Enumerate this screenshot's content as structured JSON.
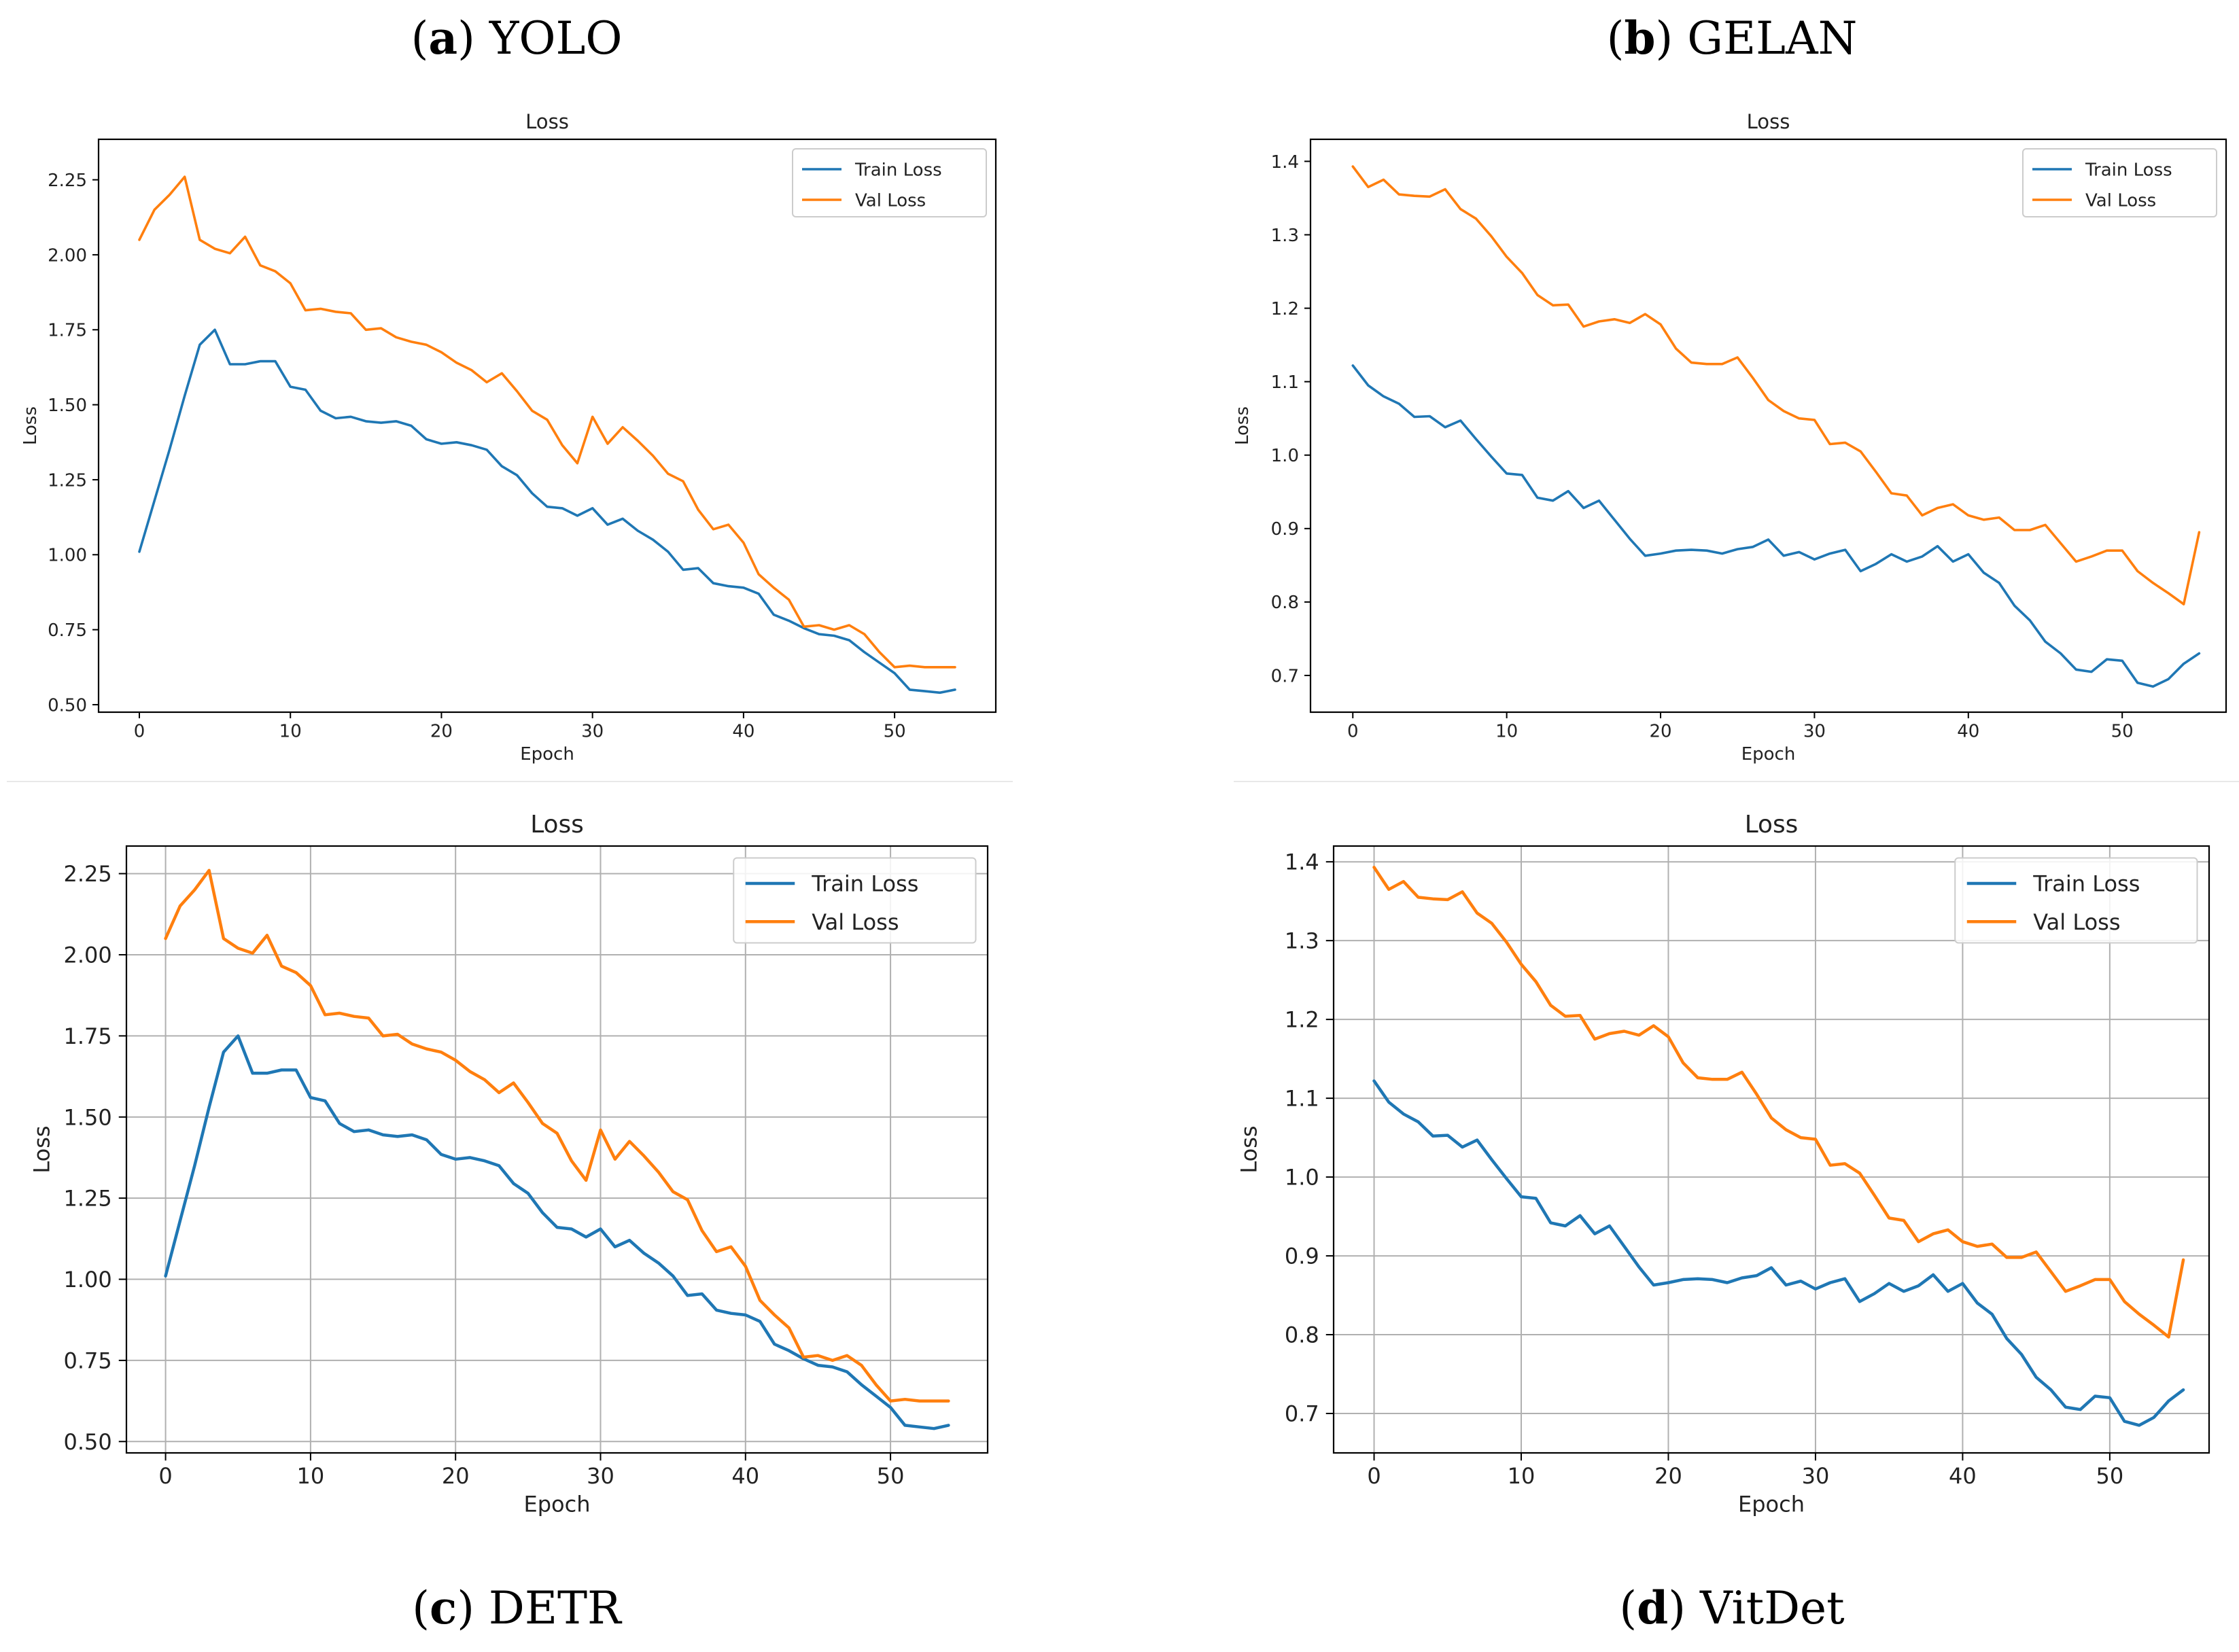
{
  "captions": [
    {
      "letter": "a",
      "name": "YOLO"
    },
    {
      "letter": "b",
      "name": "GELAN"
    },
    {
      "letter": "c",
      "name": "DETR"
    },
    {
      "letter": "d",
      "name": "VitDet"
    }
  ],
  "colors": {
    "train": "#1f77b4",
    "val": "#ff7f0e",
    "grid": "#b0b0b0",
    "axis": "#000000"
  },
  "chart_data": [
    {
      "type": "line",
      "panel": "a",
      "title": "Loss",
      "xlabel": "Epoch",
      "ylabel": "Loss",
      "xlim": [
        -2.7,
        56.7
      ],
      "ylim": [
        0.475,
        2.385
      ],
      "xticks": [
        0,
        10,
        20,
        30,
        40,
        50
      ],
      "yticks": [
        0.5,
        0.75,
        1.0,
        1.25,
        1.5,
        1.75,
        2.0,
        2.25
      ],
      "ytick_labels": [
        "0.50",
        "0.75",
        "1.00",
        "1.25",
        "1.50",
        "1.75",
        "2.00",
        "2.25"
      ],
      "grid": false,
      "legend_position": "top-right",
      "series": [
        {
          "name": "Train Loss",
          "color": "#1f77b4",
          "x_start": 0,
          "values": [
            1.01,
            1.18,
            1.35,
            1.53,
            1.7,
            1.75,
            1.635,
            1.635,
            1.645,
            1.645,
            1.56,
            1.55,
            1.48,
            1.455,
            1.46,
            1.445,
            1.44,
            1.445,
            1.43,
            1.385,
            1.37,
            1.375,
            1.365,
            1.35,
            1.295,
            1.265,
            1.205,
            1.16,
            1.155,
            1.13,
            1.155,
            1.1,
            1.12,
            1.08,
            1.05,
            1.01,
            0.95,
            0.955,
            0.905,
            0.895,
            0.89,
            0.87,
            0.8,
            0.78,
            0.755,
            0.735,
            0.73,
            0.715,
            0.675,
            0.64,
            0.605,
            0.55,
            0.545,
            0.54,
            0.55
          ]
        },
        {
          "name": "Val Loss",
          "color": "#ff7f0e",
          "x_start": 0,
          "values": [
            2.05,
            2.15,
            2.2,
            2.26,
            2.05,
            2.02,
            2.005,
            2.06,
            1.965,
            1.945,
            1.905,
            1.815,
            1.82,
            1.81,
            1.805,
            1.75,
            1.755,
            1.725,
            1.71,
            1.7,
            1.675,
            1.64,
            1.615,
            1.575,
            1.605,
            1.545,
            1.48,
            1.45,
            1.365,
            1.305,
            1.46,
            1.37,
            1.425,
            1.38,
            1.33,
            1.27,
            1.245,
            1.15,
            1.085,
            1.1,
            1.04,
            0.935,
            0.89,
            0.85,
            0.76,
            0.765,
            0.75,
            0.765,
            0.735,
            0.675,
            0.625,
            0.63,
            0.625,
            0.625,
            0.625
          ]
        }
      ]
    },
    {
      "type": "line",
      "panel": "b",
      "title": "Loss",
      "xlabel": "Epoch",
      "ylabel": "Loss",
      "xlim": [
        -2.75,
        56.75
      ],
      "ylim": [
        0.65,
        1.43
      ],
      "xticks": [
        0,
        10,
        20,
        30,
        40,
        50
      ],
      "yticks": [
        0.7,
        0.8,
        0.9,
        1.0,
        1.1,
        1.2,
        1.3,
        1.4
      ],
      "ytick_labels": [
        "0.7",
        "0.8",
        "0.9",
        "1.0",
        "1.1",
        "1.2",
        "1.3",
        "1.4"
      ],
      "grid": false,
      "legend_position": "top-right",
      "series": [
        {
          "name": "Train Loss",
          "color": "#1f77b4",
          "x_start": 0,
          "values": [
            1.122,
            1.095,
            1.08,
            1.07,
            1.052,
            1.053,
            1.038,
            1.047,
            1.022,
            0.998,
            0.975,
            0.973,
            0.942,
            0.938,
            0.951,
            0.928,
            0.938,
            0.912,
            0.886,
            0.863,
            0.866,
            0.87,
            0.871,
            0.87,
            0.866,
            0.872,
            0.875,
            0.885,
            0.863,
            0.868,
            0.858,
            0.866,
            0.871,
            0.842,
            0.852,
            0.865,
            0.855,
            0.862,
            0.876,
            0.855,
            0.865,
            0.84,
            0.826,
            0.795,
            0.775,
            0.746,
            0.73,
            0.708,
            0.705,
            0.722,
            0.72,
            0.69,
            0.685,
            0.695,
            0.716,
            0.73
          ]
        },
        {
          "name": "Val Loss",
          "color": "#ff7f0e",
          "x_start": 0,
          "values": [
            1.393,
            1.365,
            1.375,
            1.355,
            1.353,
            1.352,
            1.362,
            1.335,
            1.322,
            1.298,
            1.27,
            1.248,
            1.218,
            1.204,
            1.205,
            1.175,
            1.182,
            1.185,
            1.18,
            1.192,
            1.178,
            1.145,
            1.126,
            1.124,
            1.124,
            1.133,
            1.105,
            1.075,
            1.06,
            1.05,
            1.048,
            1.015,
            1.017,
            1.005,
            0.977,
            0.948,
            0.945,
            0.918,
            0.928,
            0.933,
            0.918,
            0.912,
            0.915,
            0.898,
            0.898,
            0.905,
            0.88,
            0.855,
            0.862,
            0.87,
            0.87,
            0.842,
            0.826,
            0.812,
            0.797,
            0.895
          ]
        }
      ]
    },
    {
      "type": "line",
      "panel": "c",
      "title": "Loss",
      "xlabel": "Epoch",
      "ylabel": "Loss",
      "xlim": [
        -2.7,
        56.7
      ],
      "ylim": [
        0.465,
        2.335
      ],
      "xticks": [
        0,
        10,
        20,
        30,
        40,
        50
      ],
      "yticks": [
        0.5,
        0.75,
        1.0,
        1.25,
        1.5,
        1.75,
        2.0,
        2.25
      ],
      "ytick_labels": [
        "0.50",
        "0.75",
        "1.00",
        "1.25",
        "1.50",
        "1.75",
        "2.00",
        "2.25"
      ],
      "grid": true,
      "legend_position": "top-right",
      "series": [
        {
          "name": "Train Loss",
          "color": "#1f77b4",
          "x_start": 0,
          "values": [
            1.01,
            1.18,
            1.35,
            1.53,
            1.7,
            1.75,
            1.635,
            1.635,
            1.645,
            1.645,
            1.56,
            1.55,
            1.48,
            1.455,
            1.46,
            1.445,
            1.44,
            1.445,
            1.43,
            1.385,
            1.37,
            1.375,
            1.365,
            1.35,
            1.295,
            1.265,
            1.205,
            1.16,
            1.155,
            1.13,
            1.155,
            1.1,
            1.12,
            1.08,
            1.05,
            1.01,
            0.95,
            0.955,
            0.905,
            0.895,
            0.89,
            0.87,
            0.8,
            0.78,
            0.755,
            0.735,
            0.73,
            0.715,
            0.675,
            0.64,
            0.605,
            0.55,
            0.545,
            0.54,
            0.55
          ]
        },
        {
          "name": "Val Loss",
          "color": "#ff7f0e",
          "x_start": 0,
          "values": [
            2.05,
            2.15,
            2.2,
            2.26,
            2.05,
            2.02,
            2.005,
            2.06,
            1.965,
            1.945,
            1.905,
            1.815,
            1.82,
            1.81,
            1.805,
            1.75,
            1.755,
            1.725,
            1.71,
            1.7,
            1.675,
            1.64,
            1.615,
            1.575,
            1.605,
            1.545,
            1.48,
            1.45,
            1.365,
            1.305,
            1.46,
            1.37,
            1.425,
            1.38,
            1.33,
            1.27,
            1.245,
            1.15,
            1.085,
            1.1,
            1.04,
            0.935,
            0.89,
            0.85,
            0.76,
            0.765,
            0.75,
            0.765,
            0.735,
            0.675,
            0.625,
            0.63,
            0.625,
            0.625,
            0.625
          ]
        }
      ]
    },
    {
      "type": "line",
      "panel": "d",
      "title": "Loss",
      "xlabel": "Epoch",
      "ylabel": "Loss",
      "xlim": [
        -2.75,
        56.75
      ],
      "ylim": [
        0.65,
        1.42
      ],
      "xticks": [
        0,
        10,
        20,
        30,
        40,
        50
      ],
      "yticks": [
        0.7,
        0.8,
        0.9,
        1.0,
        1.1,
        1.2,
        1.3,
        1.4
      ],
      "ytick_labels": [
        "0.7",
        "0.8",
        "0.9",
        "1.0",
        "1.1",
        "1.2",
        "1.3",
        "1.4"
      ],
      "grid": true,
      "legend_position": "top-right",
      "series": [
        {
          "name": "Train Loss",
          "color": "#1f77b4",
          "x_start": 0,
          "values": [
            1.122,
            1.095,
            1.08,
            1.07,
            1.052,
            1.053,
            1.038,
            1.047,
            1.022,
            0.998,
            0.975,
            0.973,
            0.942,
            0.938,
            0.951,
            0.928,
            0.938,
            0.912,
            0.886,
            0.863,
            0.866,
            0.87,
            0.871,
            0.87,
            0.866,
            0.872,
            0.875,
            0.885,
            0.863,
            0.868,
            0.858,
            0.866,
            0.871,
            0.842,
            0.852,
            0.865,
            0.855,
            0.862,
            0.876,
            0.855,
            0.865,
            0.84,
            0.826,
            0.795,
            0.775,
            0.746,
            0.73,
            0.708,
            0.705,
            0.722,
            0.72,
            0.69,
            0.685,
            0.695,
            0.716,
            0.73
          ]
        },
        {
          "name": "Val Loss",
          "color": "#ff7f0e",
          "x_start": 0,
          "values": [
            1.393,
            1.365,
            1.375,
            1.355,
            1.353,
            1.352,
            1.362,
            1.335,
            1.322,
            1.298,
            1.27,
            1.248,
            1.218,
            1.204,
            1.205,
            1.175,
            1.182,
            1.185,
            1.18,
            1.192,
            1.178,
            1.145,
            1.126,
            1.124,
            1.124,
            1.133,
            1.105,
            1.075,
            1.06,
            1.05,
            1.048,
            1.015,
            1.017,
            1.005,
            0.977,
            0.948,
            0.945,
            0.918,
            0.928,
            0.933,
            0.918,
            0.912,
            0.915,
            0.898,
            0.898,
            0.905,
            0.88,
            0.855,
            0.862,
            0.87,
            0.87,
            0.842,
            0.826,
            0.812,
            0.797,
            0.895
          ]
        }
      ]
    }
  ]
}
